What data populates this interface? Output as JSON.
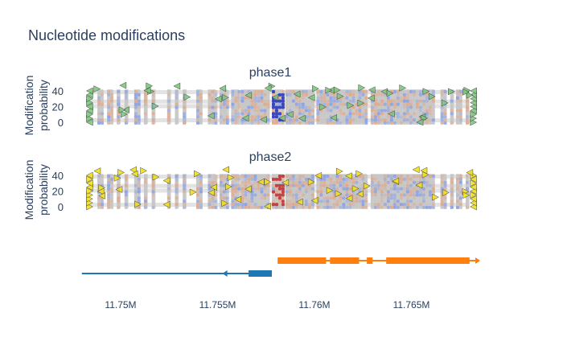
{
  "chart_data": {
    "type": "scatter",
    "title": "Nucleotide modifications",
    "subplots": [
      {
        "name": "phase1",
        "title": "phase1",
        "ylabel": [
          "Modification",
          "probability"
        ],
        "yticks": [
          0,
          20,
          40
        ],
        "hotspot_color": "#0a18b0",
        "marker_color": "#7fc77f"
      },
      {
        "name": "phase2",
        "title": "phase2",
        "ylabel": [
          "Modification",
          "probability"
        ],
        "yticks": [
          0,
          20,
          40
        ],
        "hotspot_color": "#c01010",
        "marker_color": "#f0e020"
      }
    ],
    "x_unit": "Mb",
    "xticks": [
      11.75,
      11.755,
      11.76,
      11.765
    ],
    "xtick_labels": [
      "11.75M",
      "11.755M",
      "11.76M",
      "11.765M"
    ],
    "xlim": [
      11.7481,
      11.7683
    ],
    "ylim": [
      -8,
      48
    ],
    "columns": [
      [
        11.7488,
        11.7491
      ],
      [
        11.7493,
        11.7496
      ],
      [
        11.7498,
        11.75
      ],
      [
        11.7502,
        11.7504
      ],
      [
        11.7507,
        11.751
      ],
      [
        11.7512,
        11.7514
      ],
      [
        11.7516,
        11.7518
      ],
      [
        11.7524,
        11.7526
      ],
      [
        11.7528,
        11.753
      ],
      [
        11.7532,
        11.7534
      ],
      [
        11.7539,
        11.7542
      ],
      [
        11.7545,
        11.7549
      ],
      [
        11.7551,
        11.7555
      ],
      [
        11.7557,
        11.7561
      ],
      [
        11.7562,
        11.7577
      ],
      [
        11.7578,
        11.7584
      ],
      [
        11.7585,
        11.76
      ],
      [
        11.7601,
        11.7627
      ],
      [
        11.7629,
        11.7662
      ],
      [
        11.7665,
        11.7668
      ],
      [
        11.767,
        11.7672
      ],
      [
        11.7673,
        11.7676
      ],
      [
        11.7678,
        11.768
      ]
    ],
    "hotspot": [
      11.7578,
      11.7584
    ],
    "colors": {
      "low": "#6f8ff0",
      "mid": "#c4c4c4",
      "high": "#e89a70",
      "band": "#dcdcdc"
    },
    "genes": [
      {
        "strand": "-",
        "color": "#1f77b4",
        "start": 11.748,
        "end": 11.7578,
        "exons": [
          [
            11.7566,
            11.7578
          ]
        ],
        "arrows": [
          11.7555
        ]
      },
      {
        "strand": "+",
        "color": "#ff7f0e",
        "start": 11.7581,
        "end": 11.7683,
        "exons": [
          [
            11.7581,
            11.7606
          ],
          [
            11.7608,
            11.7623
          ],
          [
            11.7627,
            11.763
          ],
          [
            11.7637,
            11.768
          ]
        ],
        "arrows": [
          11.7683
        ]
      }
    ]
  }
}
